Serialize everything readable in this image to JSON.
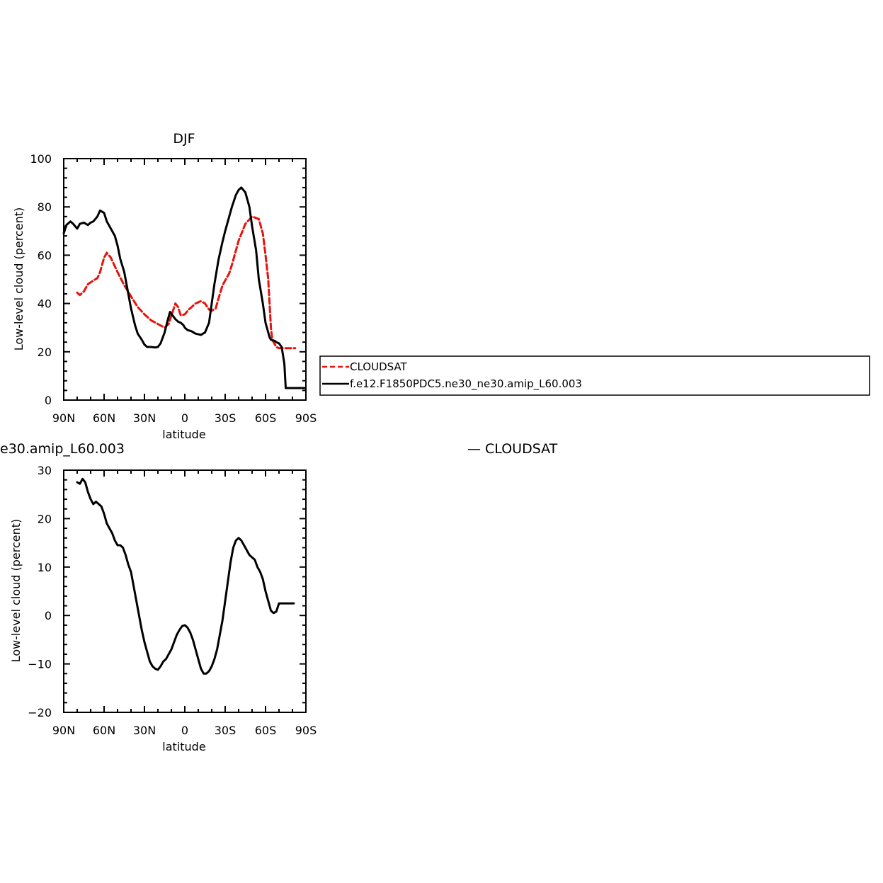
{
  "chart_data": [
    {
      "type": "line",
      "title": "DJF",
      "xlabel": "latitude",
      "ylabel": "Low-level cloud (percent)",
      "xlim": [
        90,
        -90
      ],
      "ylim": [
        0,
        100
      ],
      "xticks": [
        90,
        60,
        30,
        0,
        -30,
        -60,
        -90
      ],
      "xtick_labels": [
        "90N",
        "60N",
        "30N",
        "0",
        "30S",
        "60S",
        "90S"
      ],
      "yticks": [
        0,
        20,
        40,
        60,
        80,
        100
      ],
      "ytick_labels": [
        "0",
        "20",
        "40",
        "60",
        "80",
        "100"
      ],
      "legend": {
        "placement": "right",
        "entries": [
          "CLOUDSAT",
          "f.e12.F1850PDC5.ne30_ne30.amip_L60.003"
        ]
      },
      "series": [
        {
          "name": "CLOUDSAT",
          "color": "#e8120c",
          "dash": "dashed",
          "x": [
            80,
            78,
            75,
            72,
            68,
            65,
            63,
            60,
            58,
            55,
            50,
            45,
            40,
            35,
            30,
            25,
            20,
            15,
            12,
            10,
            7,
            5,
            3,
            0,
            -3,
            -5,
            -8,
            -12,
            -15,
            -18,
            -20,
            -23,
            -25,
            -28,
            -30,
            -33,
            -35,
            -38,
            -40,
            -45,
            -50,
            -55,
            -58,
            -60,
            -62,
            -63,
            -64,
            -65,
            -68,
            -70,
            -72,
            -75,
            -78,
            -80,
            -82
          ],
          "y": [
            44.5,
            43.5,
            45,
            48,
            49.5,
            50.5,
            53,
            59,
            61,
            59,
            53,
            47.5,
            43,
            38.5,
            35.5,
            33,
            31.5,
            30,
            31.5,
            35,
            40,
            38.5,
            35,
            35.5,
            37.5,
            38.5,
            40,
            41,
            40,
            37.5,
            37,
            38,
            42,
            47.5,
            49.5,
            52.5,
            56,
            62,
            66,
            73,
            76,
            75,
            69,
            60,
            50,
            40,
            30,
            25,
            22,
            21.5,
            21.5,
            21.5,
            21.5,
            21.5,
            21.5
          ]
        },
        {
          "name": "f.e12.F1850PDC5.ne30_ne30.amip_L60.003",
          "color": "#000000",
          "dash": "solid",
          "x": [
            90,
            88,
            85,
            83,
            80,
            78,
            75,
            72,
            70,
            68,
            65,
            63,
            60,
            58,
            55,
            52,
            50,
            48,
            45,
            42,
            40,
            37,
            35,
            32,
            30,
            28,
            25,
            22,
            20,
            18,
            15,
            13,
            11,
            9,
            7,
            5,
            3,
            1,
            0,
            -2,
            -5,
            -8,
            -12,
            -15,
            -18,
            -20,
            -22,
            -25,
            -28,
            -30,
            -33,
            -35,
            -38,
            -40,
            -42,
            -45,
            -48,
            -50,
            -53,
            -55,
            -58,
            -60,
            -62,
            -63,
            -64,
            -65,
            -67,
            -68,
            -70,
            -72,
            -74,
            -75,
            -77,
            -78,
            -80,
            -82,
            -84,
            -86,
            -88,
            -89
          ],
          "y": [
            69,
            72.5,
            74,
            73,
            71,
            73,
            73.5,
            72.5,
            73.5,
            74,
            76,
            78.5,
            77.5,
            74,
            71,
            68,
            64,
            58.5,
            53,
            44,
            38,
            31,
            27.5,
            25,
            23,
            22,
            22,
            21.8,
            22,
            23.5,
            28,
            32.5,
            36.5,
            35,
            33.5,
            32.5,
            32,
            31,
            30,
            29,
            28.5,
            27.5,
            27,
            28,
            32,
            40,
            48,
            58,
            65.5,
            70,
            76,
            80,
            85,
            87,
            88,
            86,
            80,
            72,
            62,
            50,
            40,
            32,
            28,
            26,
            25,
            24.8,
            24.5,
            24,
            23.5,
            22,
            15,
            5,
            5,
            5,
            5,
            5,
            5,
            5,
            5,
            5
          ]
        }
      ]
    },
    {
      "type": "line",
      "title": "e30.amip_L60.003",
      "title_right": "— CLOUDSAT",
      "xlabel": "latitude",
      "ylabel": "Low-level cloud (percent)",
      "xlim": [
        90,
        -90
      ],
      "ylim": [
        -20,
        30
      ],
      "xticks": [
        90,
        60,
        30,
        0,
        -30,
        -60,
        -90
      ],
      "xtick_labels": [
        "90N",
        "60N",
        "30N",
        "0",
        "30S",
        "60S",
        "90S"
      ],
      "yticks": [
        -20,
        -10,
        0,
        10,
        20,
        30
      ],
      "ytick_labels": [
        "−20",
        "−10",
        "0",
        "10",
        "20",
        "30"
      ],
      "series": [
        {
          "color": "#000000",
          "dash": "solid",
          "x": [
            80,
            78,
            76,
            74,
            72,
            70,
            68,
            66,
            64,
            62,
            60,
            58,
            56,
            54,
            52,
            50,
            48,
            46,
            44,
            42,
            40,
            38,
            36,
            34,
            32,
            30,
            28,
            26,
            24,
            22,
            20,
            18,
            16,
            14,
            12,
            10,
            8,
            6,
            4,
            2,
            0,
            -2,
            -4,
            -6,
            -8,
            -10,
            -12,
            -14,
            -16,
            -18,
            -20,
            -22,
            -24,
            -26,
            -28,
            -30,
            -32,
            -34,
            -36,
            -38,
            -40,
            -42,
            -44,
            -46,
            -48,
            -50,
            -52,
            -54,
            -56,
            -58,
            -60,
            -62,
            -64,
            -66,
            -68,
            -70,
            -72,
            -74,
            -76,
            -78,
            -80,
            -81
          ],
          "y": [
            27.5,
            27.2,
            28.2,
            27.5,
            25.5,
            24,
            23,
            23.5,
            23,
            22.5,
            21,
            19,
            18,
            17,
            15.5,
            14.5,
            14.5,
            14,
            12.5,
            10.5,
            9,
            6,
            3,
            0,
            -3,
            -5.5,
            -7.5,
            -9.5,
            -10.5,
            -11,
            -11.2,
            -10.5,
            -9.5,
            -9,
            -8,
            -7,
            -5.5,
            -4,
            -3,
            -2.2,
            -2,
            -2.5,
            -3.5,
            -5,
            -7,
            -9,
            -11,
            -12,
            -12,
            -11.5,
            -10.5,
            -9,
            -7,
            -4,
            -1,
            3,
            7,
            11,
            14,
            15.5,
            16,
            15.5,
            14.5,
            13.5,
            12.5,
            12,
            11.5,
            10,
            9,
            7.5,
            5,
            3,
            1,
            0.5,
            0.8,
            2.5,
            2.5,
            2.5,
            2.5,
            2.5,
            2.5,
            2.5
          ]
        }
      ]
    }
  ]
}
